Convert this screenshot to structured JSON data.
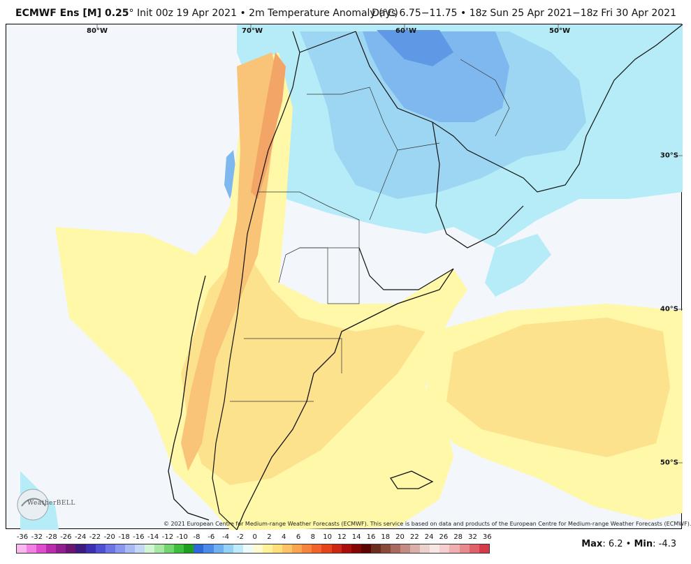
{
  "header": {
    "model": "ECMWF Ens [M] 0.25",
    "degree": "°",
    "init": "Init 00z 19 Apr 2021",
    "bullet": "•",
    "field": "2m Temperature Anomaly (°C)",
    "valid": "Days 6.75−11.75 • 18z Sun 25 Apr 2021−18z Fri 30 Apr 2021"
  },
  "map": {
    "lon_labels": [
      "80°W",
      "70°W",
      "60°W",
      "50°W"
    ],
    "lat_labels": [
      "30°S",
      "40°S",
      "50°S"
    ],
    "copyright": "© 2021 European Centre for Medium-range Weather Forecasts (ECMWF). This service is based on data and products of the European Centre for Medium-range Weather Forecasts (ECMWF).",
    "logo_text": "WeatherBELL",
    "colors": {
      "background_neutral": "#f3f6fb",
      "warm_light": "#fef8a8",
      "warm_mid": "#fde28e",
      "warm_strong": "#f9c378",
      "warm_peak": "#f3a567",
      "cool_light": "#b5ecf7",
      "cool_mid": "#9dd6f2",
      "cool_strong": "#7fb8ef",
      "cool_peak": "#5f99e6",
      "border": "#111111"
    }
  },
  "colorbar": {
    "labels": [
      "-36",
      "-32",
      "-28",
      "-26",
      "-24",
      "-22",
      "-20",
      "-18",
      "-16",
      "-14",
      "-12",
      "-10",
      "-8",
      "-6",
      "-4",
      "-2",
      "0",
      "2",
      "4",
      "6",
      "8",
      "10",
      "12",
      "14",
      "16",
      "18",
      "20",
      "22",
      "24",
      "26",
      "28",
      "32",
      "36"
    ],
    "colors": [
      "#f9b7ef",
      "#f27fe3",
      "#df4dcc",
      "#bb2bae",
      "#911e8f",
      "#6b1470",
      "#3b1c7e",
      "#3a2fb0",
      "#4e4fd3",
      "#6f74e5",
      "#8a97ef",
      "#a9b9f4",
      "#c5d6f6",
      "#d4f5d4",
      "#a8e8a4",
      "#72d56e",
      "#3cbf3a",
      "#1e9f1f",
      "#2f68d8",
      "#4a8ae8",
      "#6fb0f1",
      "#95d1f5",
      "#bfeaf8",
      "#eef9fb",
      "#fffbd0",
      "#fef39b",
      "#fde07c",
      "#fcc466",
      "#f9a44f",
      "#f6843c",
      "#f1632a",
      "#e4441c",
      "#cc2712",
      "#a80e0b",
      "#820606",
      "#5a0404",
      "#6b2d1e",
      "#8a4a3a",
      "#a86a5e",
      "#c28c84",
      "#d8afa9",
      "#ecd2cd",
      "#f7e6e3",
      "#f5cfcf",
      "#efaeb0",
      "#e8898e",
      "#df606a",
      "#d53a49"
    ]
  },
  "stats": {
    "max_label": "Max",
    "max_value": ": 6.2",
    "sep": " • ",
    "min_label": "Min",
    "min_value": ": -4.3"
  }
}
